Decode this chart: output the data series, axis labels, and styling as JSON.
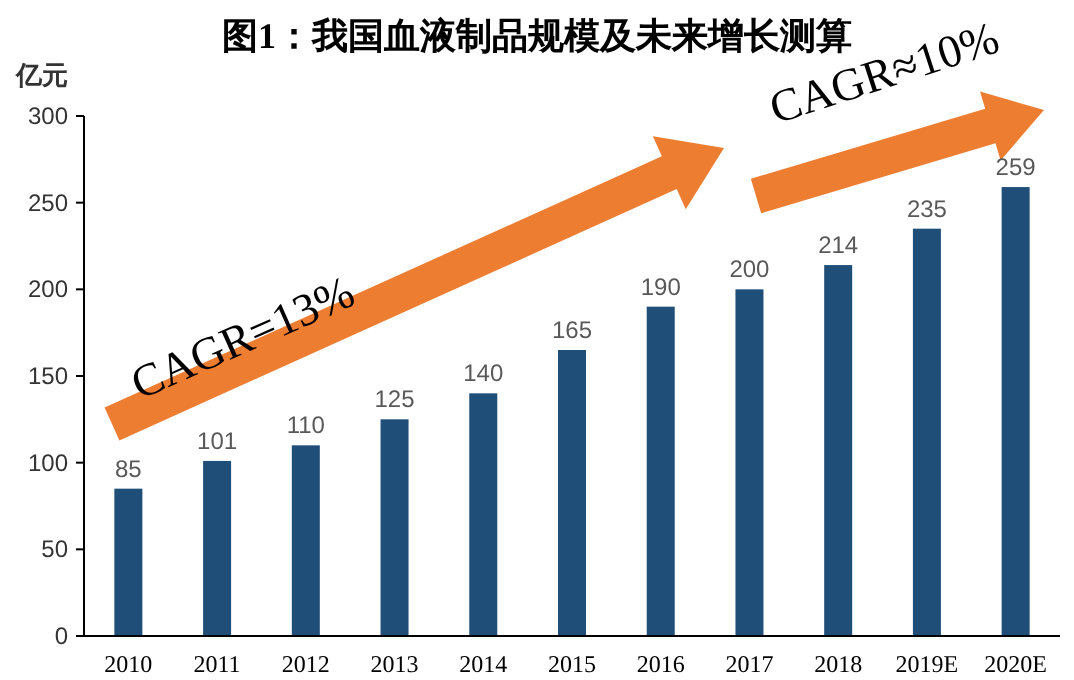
{
  "chart_data": {
    "type": "bar",
    "title": "图1：我国血液制品规模及未来增长测算",
    "ylabel": "亿元",
    "categories": [
      "2010",
      "2011",
      "2012",
      "2013",
      "2014",
      "2015",
      "2016",
      "2017",
      "2018",
      "2019E",
      "2020E"
    ],
    "values": [
      85,
      101,
      110,
      125,
      140,
      165,
      190,
      200,
      214,
      235,
      259
    ],
    "color": "#1f4e79",
    "ylim": [
      0,
      300
    ],
    "yticks": [
      0,
      50,
      100,
      150,
      200,
      250,
      300
    ],
    "data_labels": true,
    "annotations": [
      "CAGR=13%",
      "CAGR≈10%"
    ]
  }
}
